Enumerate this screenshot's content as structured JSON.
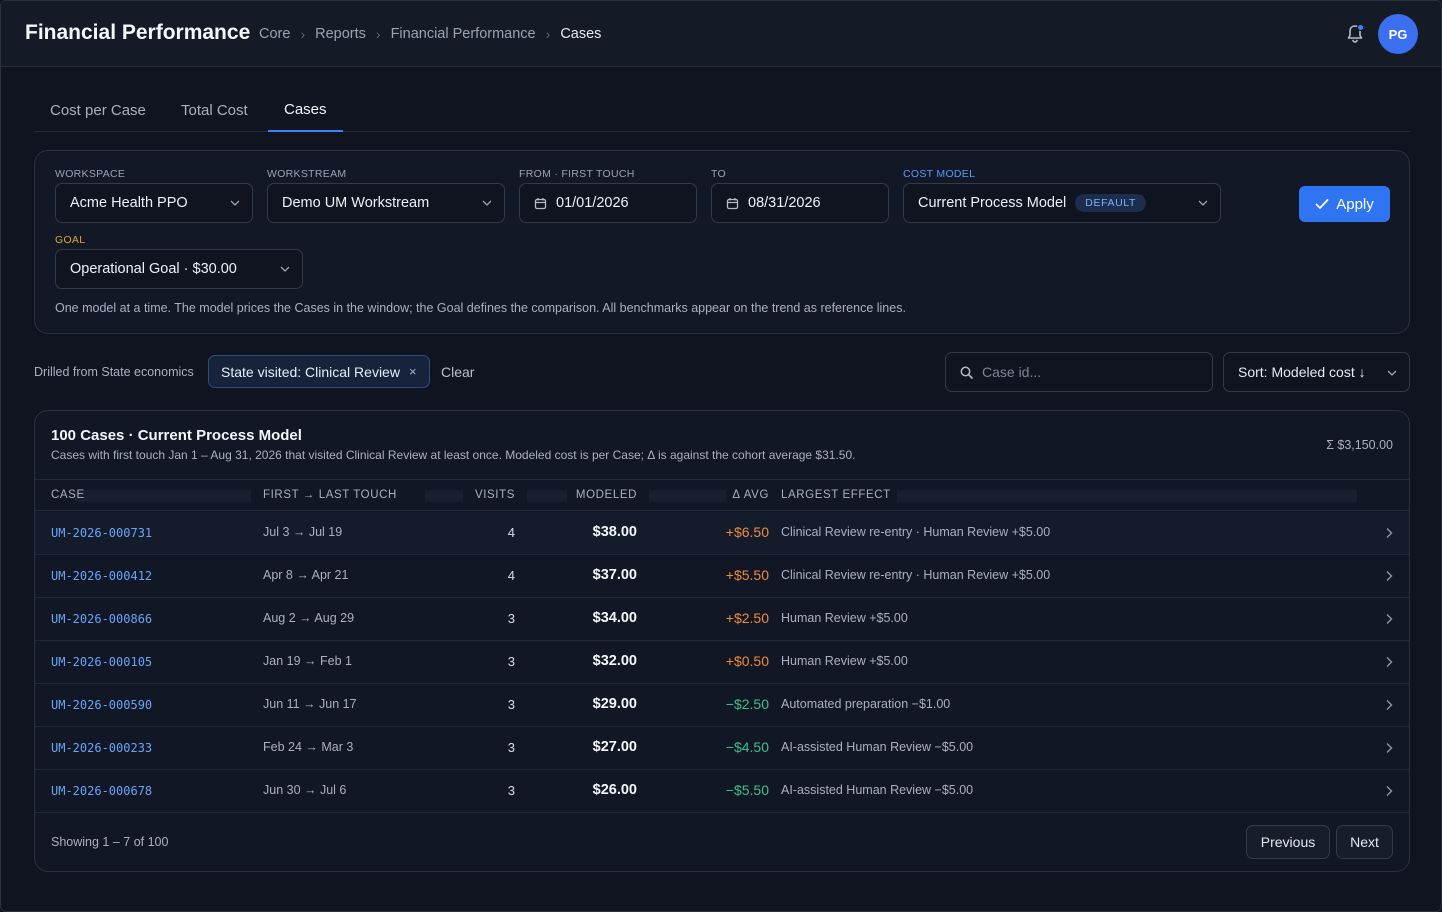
{
  "header": {
    "title": "Financial Performance",
    "breadcrumbs": [
      "Core",
      "Reports",
      "Financial Performance",
      "Cases"
    ],
    "avatar_initials": "PG"
  },
  "tabs": [
    {
      "label": "Cost per Case",
      "active": false
    },
    {
      "label": "Total Cost",
      "active": false
    },
    {
      "label": "Cases",
      "active": true
    }
  ],
  "filters": {
    "workspace_label": "WORKSPACE",
    "workspace_value": "Acme Health PPO",
    "workstream_label": "WORKSTREAM",
    "workstream_value": "Demo UM Workstream",
    "from_label": "FROM · FIRST TOUCH",
    "from_value": "01/01/2026",
    "to_label": "TO",
    "to_value": "08/31/2026",
    "cost_model_label": "COST MODEL",
    "cost_model_value": "Current Process Model",
    "cost_model_badge": "DEFAULT",
    "goal_label": "GOAL",
    "goal_value": "Operational Goal · $30.00",
    "apply_label": "Apply",
    "note": "One model at a time. The model prices the Cases in the window; the Goal defines the comparison. All benchmarks appear on the trend as reference lines."
  },
  "drill": {
    "label": "Drilled from State economics",
    "chip": "State visited: Clinical Review",
    "chip_close": "×",
    "clear_label": "Clear",
    "search_placeholder": "Case id...",
    "sort_label": "Sort: Modeled cost ↓"
  },
  "table": {
    "title": "100 Cases · Current Process Model",
    "subtitle": "Cases with first touch Jan 1 – Aug 31, 2026 that visited Clinical Review at least once. Modeled cost is per Case; Δ is against the cohort average $31.50.",
    "sum": "Σ $3,150.00",
    "columns": [
      "CASE",
      "FIRST → LAST TOUCH",
      "VISITS",
      "MODELED",
      "Δ AVG",
      "LARGEST EFFECT"
    ],
    "rows": [
      {
        "case": "UM-2026-000731",
        "touch": "Jul 3 → Jul 19",
        "visits": "4",
        "modeled": "$38.00",
        "delta": "+$6.50",
        "effect": "Clinical Review re-entry · Human Review +$5.00"
      },
      {
        "case": "UM-2026-000412",
        "touch": "Apr 8 → Apr 21",
        "visits": "4",
        "modeled": "$37.00",
        "delta": "+$5.50",
        "effect": "Clinical Review re-entry · Human Review +$5.00"
      },
      {
        "case": "UM-2026-000866",
        "touch": "Aug 2 → Aug 29",
        "visits": "3",
        "modeled": "$34.00",
        "delta": "+$2.50",
        "effect": "Human Review +$5.00"
      },
      {
        "case": "UM-2026-000105",
        "touch": "Jan 19 → Feb 1",
        "visits": "3",
        "modeled": "$32.00",
        "delta": "+$0.50",
        "effect": "Human Review +$5.00"
      },
      {
        "case": "UM-2026-000590",
        "touch": "Jun 11 → Jun 17",
        "visits": "3",
        "modeled": "$29.00",
        "delta": "−$2.50",
        "effect": "Automated preparation −$1.00"
      },
      {
        "case": "UM-2026-000233",
        "touch": "Feb 24 → Mar 3",
        "visits": "3",
        "modeled": "$27.00",
        "delta": "−$4.50",
        "effect": "AI-assisted Human Review −$5.00"
      },
      {
        "case": "UM-2026-000678",
        "touch": "Jun 30 → Jul 6",
        "visits": "3",
        "modeled": "$26.00",
        "delta": "−$5.50",
        "effect": "AI-assisted Human Review −$5.00"
      }
    ],
    "footer": "Showing 1 – 7 of 100",
    "prev_label": "Previous",
    "next_label": "Next"
  },
  "colors": {
    "accent": "#2f74f0",
    "positive_delta": "#ef8a3c",
    "negative_delta": "#3cc08a",
    "goal": "#e3a53b"
  }
}
